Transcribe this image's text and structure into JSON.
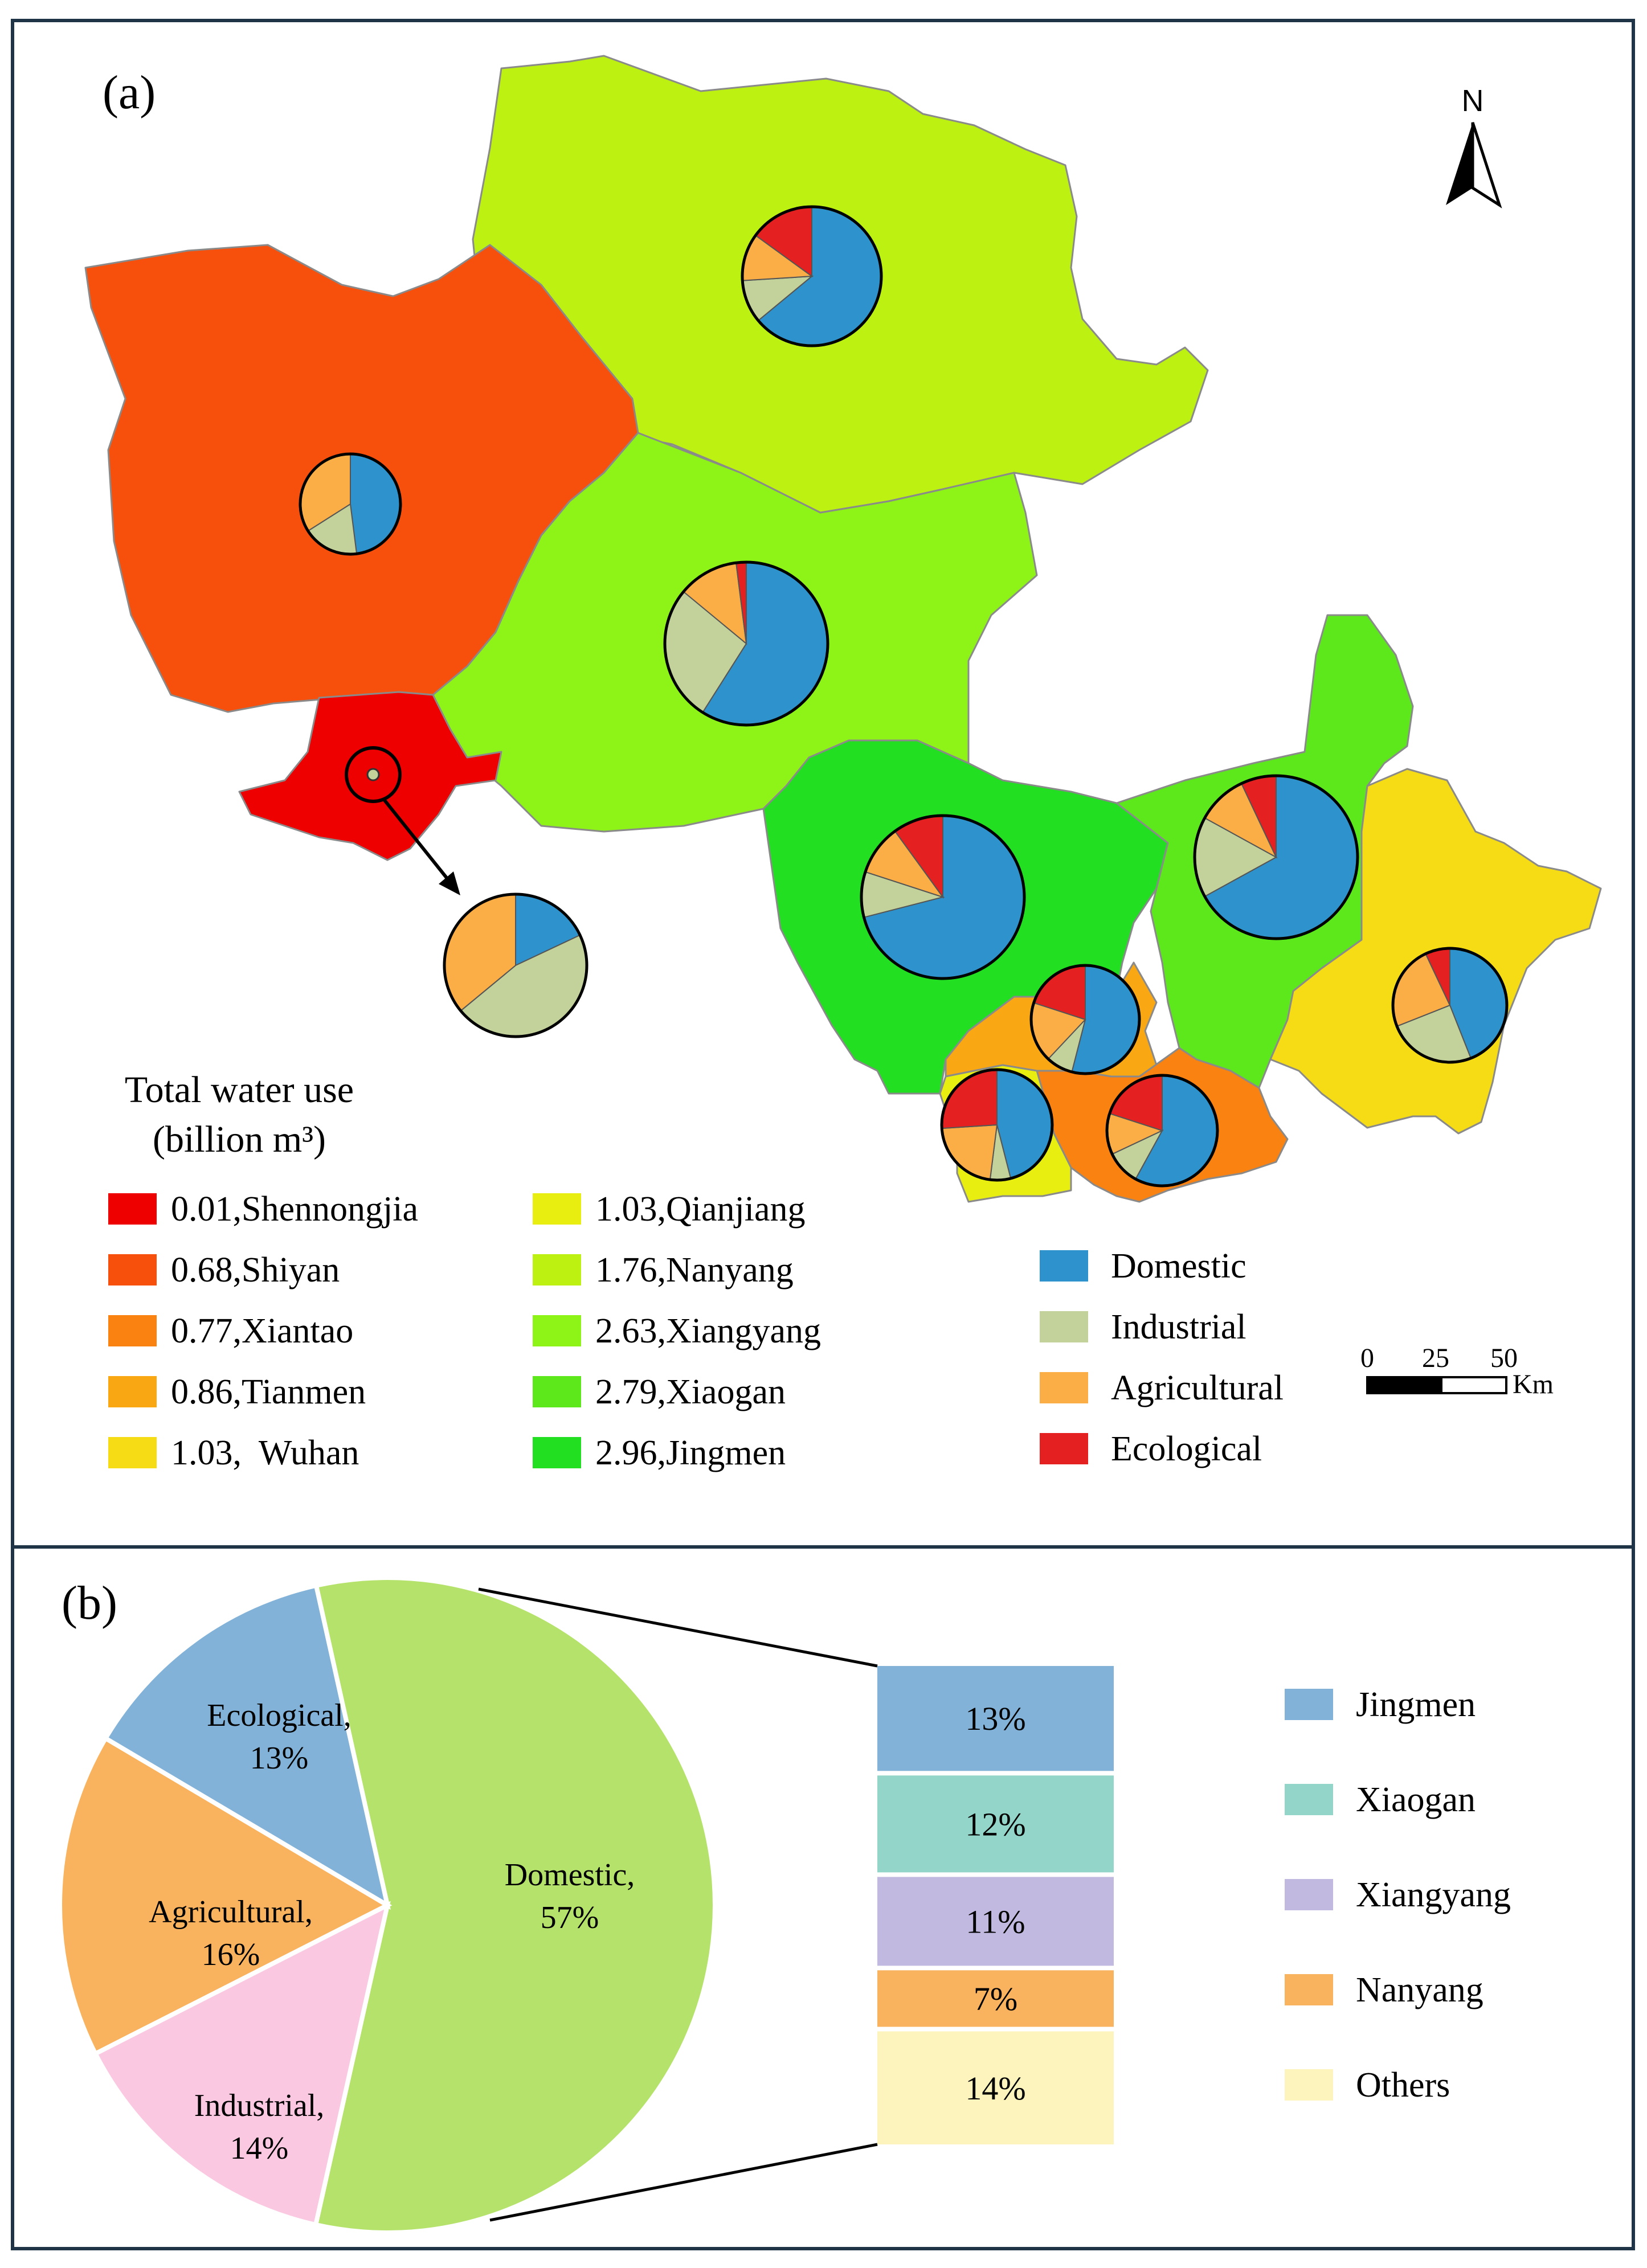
{
  "panel_a": {
    "label": "(a)",
    "north": "N",
    "legend_title": [
      "Total water use",
      "(billion m³)"
    ],
    "cities": [
      {
        "value": "0.01",
        "name": "Shennongjia",
        "color": "#ee0000",
        "text": "0.01,Shennongjia"
      },
      {
        "value": "0.68",
        "name": "Shiyan",
        "color": "#f74f0c",
        "text": "0.68,Shiyan"
      },
      {
        "value": "0.77",
        "name": "Xiantao",
        "color": "#f98210",
        "text": "0.77,Xiantao"
      },
      {
        "value": "0.86",
        "name": "Tianmen",
        "color": "#f9a814",
        "text": "0.86,Tianmen"
      },
      {
        "value": "1.03",
        "name": "Wuhan",
        "color": "#f6dc14",
        "text": "1.03,  Wuhan"
      },
      {
        "value": "1.03",
        "name": "Qianjiang",
        "color": "#e8ee10",
        "text": "1.03,Qianjiang"
      },
      {
        "value": "1.76",
        "name": "Nanyang",
        "color": "#bdf112",
        "text": "1.76,Nanyang"
      },
      {
        "value": "2.63",
        "name": "Xiangyang",
        "color": "#8ef316",
        "text": "2.63,Xiangyang"
      },
      {
        "value": "2.79",
        "name": "Xiaogan",
        "color": "#5de81c",
        "text": "2.79,Xiaogan"
      },
      {
        "value": "2.96",
        "name": "Jingmen",
        "color": "#22df22",
        "text": "2.96,Jingmen"
      }
    ],
    "sectors": [
      {
        "name": "Domestic",
        "color": "#2e92cc"
      },
      {
        "name": "Industrial",
        "color": "#c3d29a"
      },
      {
        "name": "Agricultural",
        "color": "#fbad46"
      },
      {
        "name": "Ecological",
        "color": "#e42020"
      }
    ],
    "scale_ticks": [
      "0",
      "25",
      "50"
    ],
    "scale_unit": "Km",
    "city_pies": [
      {
        "city": "Nanyang",
        "shares": [
          0.64,
          0.1,
          0.11,
          0.15
        ]
      },
      {
        "city": "Shiyan",
        "shares": [
          0.48,
          0.18,
          0.34,
          0.0
        ]
      },
      {
        "city": "Xiangyang",
        "shares": [
          0.59,
          0.27,
          0.12,
          0.02
        ]
      },
      {
        "city": "Shennongjia",
        "shares": [
          0.18,
          0.46,
          0.36,
          0.0
        ]
      },
      {
        "city": "Jingmen",
        "shares": [
          0.71,
          0.09,
          0.1,
          0.1
        ]
      },
      {
        "city": "Xiaogan",
        "shares": [
          0.67,
          0.16,
          0.1,
          0.07
        ]
      },
      {
        "city": "Tianmen",
        "shares": [
          0.54,
          0.08,
          0.18,
          0.2
        ]
      },
      {
        "city": "Wuhan",
        "shares": [
          0.44,
          0.25,
          0.24,
          0.07
        ]
      },
      {
        "city": "Qianjiang",
        "shares": [
          0.46,
          0.06,
          0.22,
          0.26
        ]
      },
      {
        "city": "Xiantao",
        "shares": [
          0.58,
          0.1,
          0.12,
          0.2
        ]
      }
    ]
  },
  "panel_b": {
    "label": "(b)",
    "chart_data": {
      "type": "pie",
      "slices": [
        {
          "label": "Domestic,",
          "pct": "57%",
          "value": 57,
          "color": "#b5e26a"
        },
        {
          "label": "Industrial,",
          "pct": "14%",
          "value": 14,
          "color": "#fbc8e2"
        },
        {
          "label": "Agricultural,",
          "pct": "16%",
          "value": 16,
          "color": "#f9b25e"
        },
        {
          "label": "Ecological,",
          "pct": "13%",
          "value": 13,
          "color": "#82b2d8"
        }
      ],
      "breakdown_of": "Domestic",
      "breakdown": [
        {
          "name": "Jingmen",
          "pct": "13%",
          "value": 13,
          "color": "#82b2d8"
        },
        {
          "name": "Xiaogan",
          "pct": "12%",
          "value": 12,
          "color": "#93d6c9"
        },
        {
          "name": "Xiangyang",
          "pct": "11%",
          "value": 11,
          "color": "#c1b9e0"
        },
        {
          "name": "Nanyang",
          "pct": "7%",
          "value": 7,
          "color": "#f9b25e"
        },
        {
          "name": "Others",
          "pct": "14%",
          "value": 14,
          "color": "#fdf4bd"
        }
      ]
    }
  }
}
